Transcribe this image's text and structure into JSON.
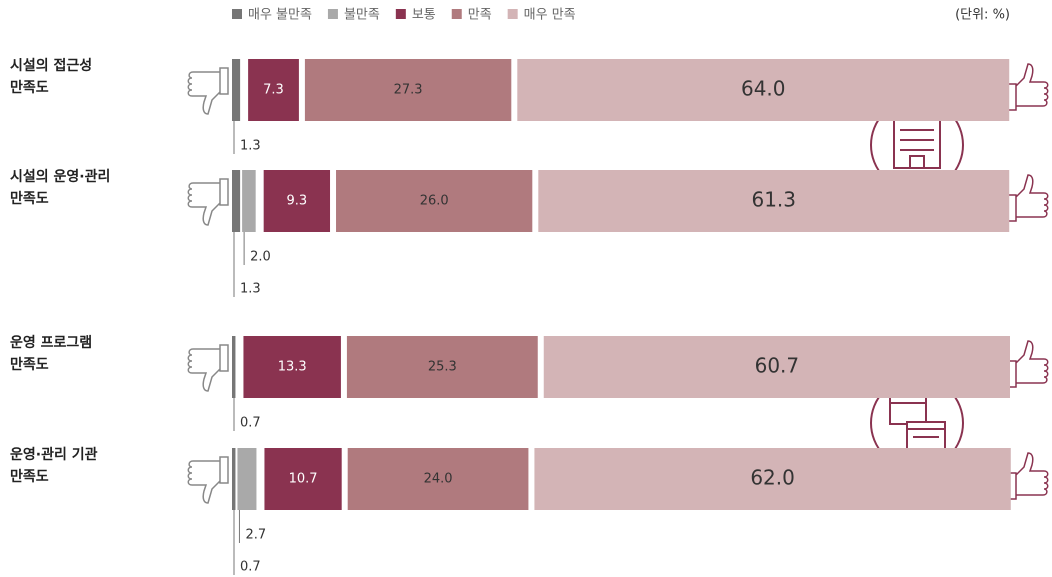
{
  "chart_data": {
    "type": "stacked-bar-horizontal",
    "unit_note": "(단위: %)",
    "categories": [
      "시설의 접근성 만족도",
      "시설의 운영·관리 만족도",
      "운영 프로그램 만족도",
      "운영·관리 기관 만족도"
    ],
    "xlim": [
      0,
      100
    ],
    "series": [
      {
        "name": "매우 불만족",
        "color": "#767676",
        "values": [
          1.3,
          1.3,
          0.7,
          0.7
        ]
      },
      {
        "name": "불만족",
        "color": "#a9a9a9",
        "values": [
          0,
          2.0,
          0,
          2.7
        ]
      },
      {
        "name": "보통",
        "color": "#8a3350",
        "values": [
          7.3,
          9.3,
          13.3,
          10.7
        ]
      },
      {
        "name": "만족",
        "color": "#b07a7e",
        "values": [
          27.3,
          26.0,
          25.3,
          24.0
        ]
      },
      {
        "name": "매우 만족",
        "color": "#d3b4b6",
        "values": [
          64.0,
          61.3,
          60.7,
          62.0
        ]
      }
    ],
    "value_labels": [
      [
        "1.3",
        "1.3",
        "0.7",
        "0.7"
      ],
      [
        "",
        "2.0",
        "",
        "2.7"
      ],
      [
        "7.3",
        "9.3",
        "13.3",
        "10.7"
      ],
      [
        "27.3",
        "26.0",
        "25.3",
        "24.0"
      ],
      [
        "64.0",
        "61.3",
        "60.7",
        "62.0"
      ]
    ]
  }
}
